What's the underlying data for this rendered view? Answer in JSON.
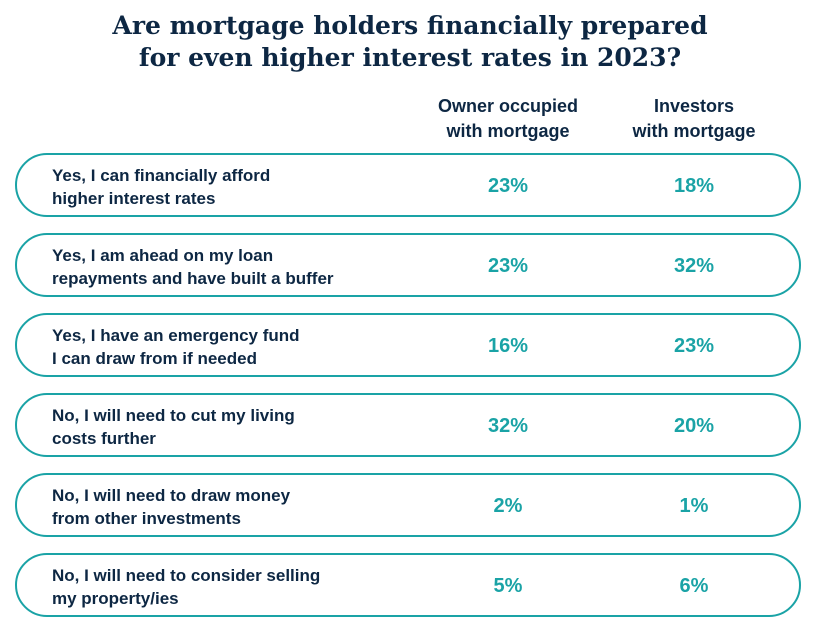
{
  "title": {
    "line1": "Are mortgage holders financially prepared",
    "line2": "for even higher interest rates in 2023?"
  },
  "colors": {
    "accent": "#1aa3a6",
    "text": "#0d2743"
  },
  "chart_data": {
    "type": "table",
    "title": "Are mortgage holders financially prepared for even higher interest rates in 2023?",
    "columns": [
      {
        "name": "Owner occupied with mortgage",
        "line1": "Owner occupied",
        "line2": "with mortgage"
      },
      {
        "name": "Investors with mortgage",
        "line1": "Investors",
        "line2": "with mortgage"
      }
    ],
    "rows": [
      {
        "line1": "Yes, I can financially afford",
        "line2": "higher interest rates",
        "values": [
          "23%",
          "18%"
        ]
      },
      {
        "line1": "Yes, I am ahead on my loan",
        "line2": "repayments and have built a buffer",
        "values": [
          "23%",
          "32%"
        ]
      },
      {
        "line1": "Yes, I have an emergency fund",
        "line2": "I can draw from if needed",
        "values": [
          "16%",
          "23%"
        ]
      },
      {
        "line1": "No, I will need to cut my living",
        "line2": "costs further",
        "values": [
          "32%",
          "20%"
        ]
      },
      {
        "line1": "No, I will need to draw money",
        "line2": "from other investments",
        "values": [
          "2%",
          "1%"
        ]
      },
      {
        "line1": "No, I will need to consider selling",
        "line2": "my property/ies",
        "values": [
          "5%",
          "6%"
        ]
      }
    ]
  }
}
